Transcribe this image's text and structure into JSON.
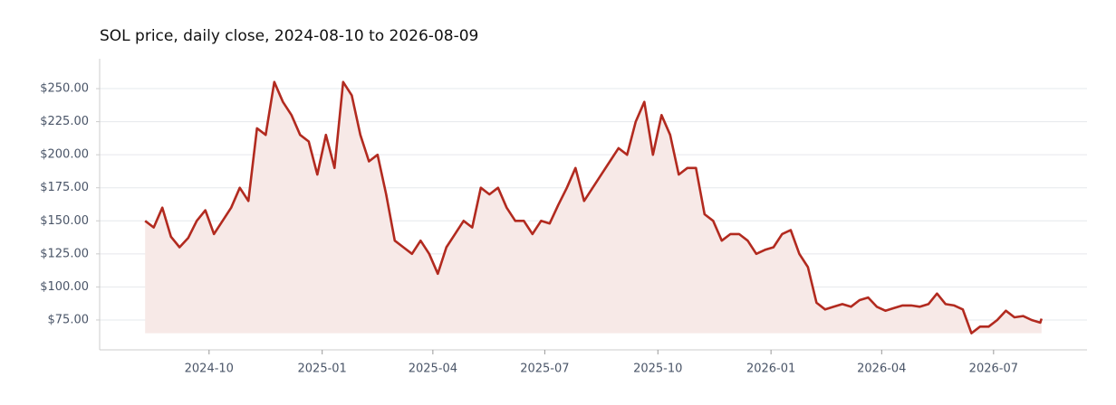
{
  "chart_data": {
    "type": "line",
    "title": "SOL price, daily close, 2024-08-10 to 2026-08-09",
    "x": [
      "2024-08-10",
      "2024-08-17",
      "2024-08-24",
      "2024-08-31",
      "2024-09-07",
      "2024-09-14",
      "2024-09-21",
      "2024-09-28",
      "2024-10-05",
      "2024-10-12",
      "2024-10-19",
      "2024-10-26",
      "2024-11-02",
      "2024-11-09",
      "2024-11-16",
      "2024-11-23",
      "2024-11-30",
      "2024-12-07",
      "2024-12-14",
      "2024-12-21",
      "2024-12-28",
      "2025-01-04",
      "2025-01-11",
      "2025-01-18",
      "2025-01-25",
      "2025-02-01",
      "2025-02-08",
      "2025-02-15",
      "2025-02-22",
      "2025-03-01",
      "2025-03-08",
      "2025-03-15",
      "2025-03-22",
      "2025-03-29",
      "2025-04-05",
      "2025-04-12",
      "2025-04-19",
      "2025-04-26",
      "2025-05-03",
      "2025-05-10",
      "2025-05-17",
      "2025-05-24",
      "2025-05-31",
      "2025-06-07",
      "2025-06-14",
      "2025-06-21",
      "2025-06-28",
      "2025-07-05",
      "2025-07-12",
      "2025-07-19",
      "2025-07-26",
      "2025-08-02",
      "2025-08-09",
      "2025-08-16",
      "2025-08-23",
      "2025-08-30",
      "2025-09-06",
      "2025-09-13",
      "2025-09-20",
      "2025-09-27",
      "2025-10-04",
      "2025-10-11",
      "2025-10-18",
      "2025-10-25",
      "2025-11-01",
      "2025-11-08",
      "2025-11-15",
      "2025-11-22",
      "2025-11-29",
      "2025-12-06",
      "2025-12-13",
      "2025-12-20",
      "2025-12-27",
      "2026-01-03",
      "2026-01-10",
      "2026-01-17",
      "2026-01-24",
      "2026-01-31",
      "2026-02-07",
      "2026-02-14",
      "2026-02-21",
      "2026-02-28",
      "2026-03-07",
      "2026-03-14",
      "2026-03-21",
      "2026-03-28",
      "2026-04-04",
      "2026-04-11",
      "2026-04-18",
      "2026-04-25",
      "2026-05-02",
      "2026-05-09",
      "2026-05-16",
      "2026-05-23",
      "2026-05-30",
      "2026-06-06",
      "2026-06-13",
      "2026-06-20",
      "2026-06-27",
      "2026-07-04",
      "2026-07-11",
      "2026-07-18",
      "2026-07-25",
      "2026-08-01",
      "2026-08-08",
      "2026-08-09"
    ],
    "series": [
      {
        "name": "SOL",
        "color": "#b22a1f",
        "fill": "#f7e9e7",
        "values": [
          150,
          145,
          160,
          138,
          130,
          137,
          150,
          158,
          140,
          150,
          160,
          175,
          165,
          220,
          215,
          255,
          240,
          230,
          215,
          210,
          185,
          215,
          190,
          255,
          245,
          215,
          195,
          200,
          170,
          135,
          130,
          125,
          135,
          125,
          110,
          130,
          140,
          150,
          145,
          175,
          170,
          175,
          160,
          150,
          150,
          140,
          150,
          148,
          162,
          175,
          190,
          165,
          175,
          185,
          195,
          205,
          200,
          225,
          240,
          200,
          230,
          215,
          185,
          190,
          190,
          155,
          150,
          135,
          140,
          140,
          135,
          125,
          128,
          130,
          140,
          143,
          125,
          115,
          88,
          83,
          85,
          87,
          85,
          90,
          92,
          85,
          82,
          84,
          86,
          86,
          85,
          87,
          95,
          87,
          86,
          83,
          65,
          70,
          70,
          75,
          82,
          77,
          78,
          75,
          73,
          76
        ]
      }
    ],
    "xlim": [
      "2024-07-04",
      "2026-09-15"
    ],
    "xticks": [
      "2024-10",
      "2025-01",
      "2025-04",
      "2025-07",
      "2025-10",
      "2026-01",
      "2026-04",
      "2026-07"
    ],
    "ylim": [
      52.4,
      272.6
    ],
    "yticks": [
      {
        "value": 75,
        "label": "$75.00"
      },
      {
        "value": 100,
        "label": "$100.00"
      },
      {
        "value": 125,
        "label": "$125.00"
      },
      {
        "value": 150,
        "label": "$150.00"
      },
      {
        "value": 175,
        "label": "$175.00"
      },
      {
        "value": 200,
        "label": "$200.00"
      },
      {
        "value": 225,
        "label": "$225.00"
      },
      {
        "value": 250,
        "label": "$250.00"
      }
    ],
    "grid": true
  }
}
